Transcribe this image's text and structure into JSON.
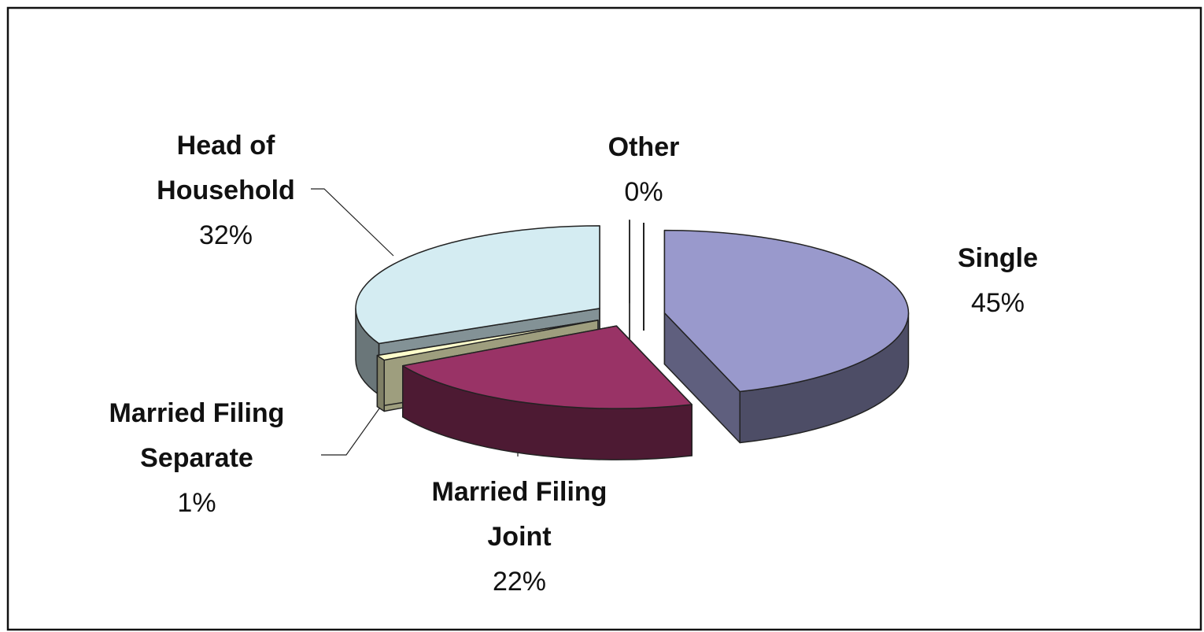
{
  "chart_data": {
    "type": "pie3d",
    "categories": [
      "Single",
      "Married Filing Joint",
      "Married Filing Separate",
      "Head of Household",
      "Other"
    ],
    "values": [
      45,
      22,
      1,
      32,
      0
    ],
    "value_labels": [
      "45%",
      "22%",
      "1%",
      "32%",
      "0%"
    ],
    "colors": [
      "#9999cc",
      "#993366",
      "#ffffcc",
      "#d4ecf2",
      "#cccccc"
    ]
  }
}
